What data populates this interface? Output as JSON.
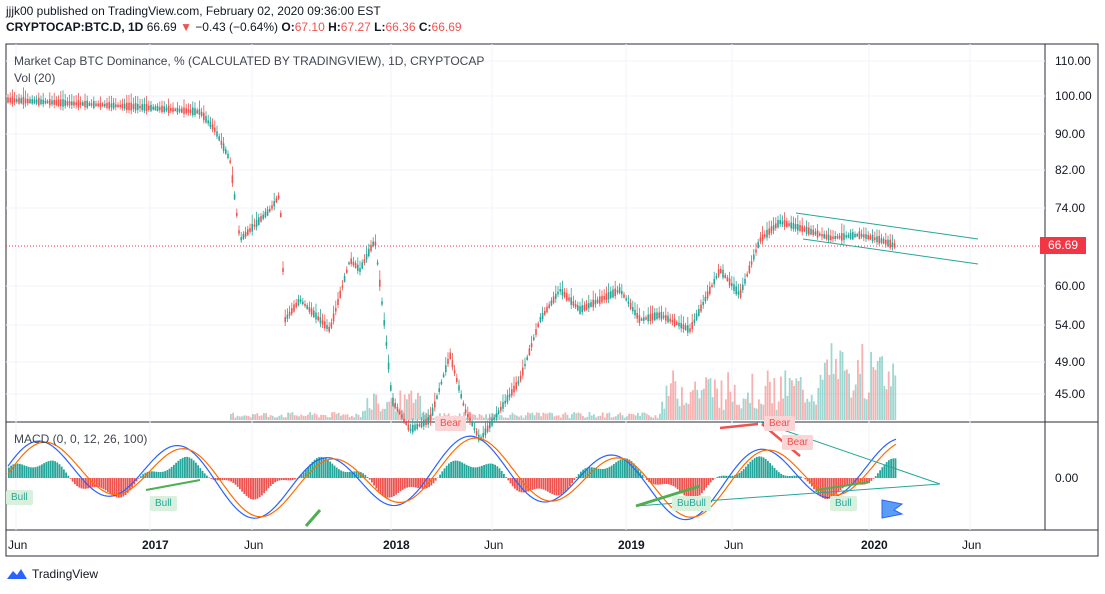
{
  "header": {
    "publisher_line": "jjjk00 published on TradingView.com, February 02, 2020 09:36:00 EST",
    "symbol": "CRYPTOCAP:BTC.D, 1D",
    "last": "66.69",
    "change": "−0.43 (−0.64%)",
    "o_label": "O:",
    "o_value": "67.10",
    "h_label": "H:",
    "h_value": "67.27",
    "l_label": "L:",
    "l_value": "66.36",
    "c_label": "C:",
    "c_value": "66.69"
  },
  "panes": {
    "main_title": "Market Cap BTC Dominance, % (CALCULATED BY TRADINGVIEW), 1D, CRYPTOCAP",
    "volume_title": "Vol (20)",
    "macd_title": "MACD (0, 0, 12, 26, 100)"
  },
  "price_axis": [
    "110.00",
    "100.00",
    "90.00",
    "82.00",
    "74.00",
    "60.00",
    "54.00",
    "49.00",
    "45.00"
  ],
  "macd_axis": [
    "0.00"
  ],
  "current_price": "66.69",
  "time_axis": [
    {
      "label": "Jun",
      "bold": false
    },
    {
      "label": "2017",
      "bold": true
    },
    {
      "label": "Jun",
      "bold": false
    },
    {
      "label": "2018",
      "bold": true
    },
    {
      "label": "Jun",
      "bold": false
    },
    {
      "label": "2019",
      "bold": true
    },
    {
      "label": "Jun",
      "bold": false
    },
    {
      "label": "2020",
      "bold": true
    },
    {
      "label": "Jun",
      "bold": false
    }
  ],
  "annotations": {
    "bull_1": "Bull",
    "bull_2": "Bull",
    "bull_3": "BuBull",
    "bull_4": "Bull",
    "bear_1": "Bear",
    "bear_2": "Bear",
    "bear_3": "Bear"
  },
  "footer": {
    "brand": "TradingView"
  },
  "colors": {
    "up": "#26a69a",
    "down": "#ef5350",
    "trendline": "#26a69a",
    "macd": "#2962ff",
    "signal": "#ff6d00",
    "price_line": "#f23645"
  },
  "chart_data": {
    "type": "candlestick",
    "symbol": "CRYPTOCAP:BTC.D",
    "interval": "1D",
    "period": "Jun 2016 – Feb 2020",
    "close_path": [
      [
        "2016-06",
        97
      ],
      [
        "2016-08",
        96
      ],
      [
        "2016-10",
        96.5
      ],
      [
        "2016-12",
        96
      ],
      [
        "2017-02",
        85
      ],
      [
        "2017-03",
        70
      ],
      [
        "2017-05",
        64
      ],
      [
        "2017-06",
        74
      ],
      [
        "2017-07",
        54
      ],
      [
        "2017-09",
        58
      ],
      [
        "2017-11",
        66
      ],
      [
        "2017-12",
        43
      ],
      [
        "2018-01",
        34
      ],
      [
        "2018-03",
        47
      ],
      [
        "2018-05",
        36
      ],
      [
        "2018-07",
        44
      ],
      [
        "2018-09",
        58
      ],
      [
        "2018-11",
        56
      ],
      [
        "2019-01",
        53
      ],
      [
        "2019-03",
        52
      ],
      [
        "2019-05",
        57
      ],
      [
        "2019-07",
        68
      ],
      [
        "2019-09",
        70
      ],
      [
        "2019-11",
        67
      ],
      [
        "2020-01",
        68
      ],
      [
        "2020-02",
        66.69
      ]
    ],
    "ohlc_last": {
      "open": 67.1,
      "high": 67.27,
      "low": 66.36,
      "close": 66.69
    },
    "change": -0.43,
    "change_pct": -0.64,
    "ylim": [
      42,
      112
    ]
  }
}
